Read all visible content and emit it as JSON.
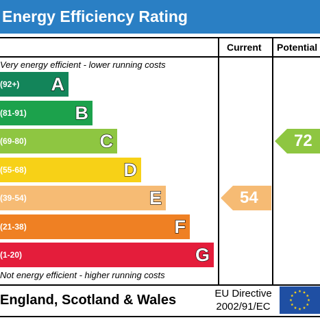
{
  "header": {
    "title": "Energy Efficiency Rating"
  },
  "columns": {
    "current": "Current",
    "potential": "Potential"
  },
  "notes": {
    "top": "Very energy efficient - lower running costs",
    "bottom": "Not energy efficient - higher running costs"
  },
  "chart_data": {
    "type": "bar",
    "title": "Energy Efficiency Rating",
    "bands": [
      {
        "range": "(92+)",
        "letter": "A",
        "color": "#13855a"
      },
      {
        "range": "(81-91)",
        "letter": "B",
        "color": "#1ca24c"
      },
      {
        "range": "(69-80)",
        "letter": "C",
        "color": "#8ec641"
      },
      {
        "range": "(55-68)",
        "letter": "D",
        "color": "#f7d117"
      },
      {
        "range": "(39-54)",
        "letter": "E",
        "color": "#f6bb74"
      },
      {
        "range": "(21-38)",
        "letter": "F",
        "color": "#ef8023"
      },
      {
        "range": "(1-20)",
        "letter": "G",
        "color": "#e41d3b"
      }
    ],
    "current": {
      "value": 54,
      "band": "E",
      "color": "#f6bb74"
    },
    "potential": {
      "value": 72,
      "band": "C",
      "color": "#8ec641"
    }
  },
  "footer": {
    "region": "England, Scotland & Wales",
    "directive_line1": "EU Directive",
    "directive_line2": "2002/91/EC",
    "flag_color": "#1f4fa3",
    "star_color": "#f7d117"
  }
}
